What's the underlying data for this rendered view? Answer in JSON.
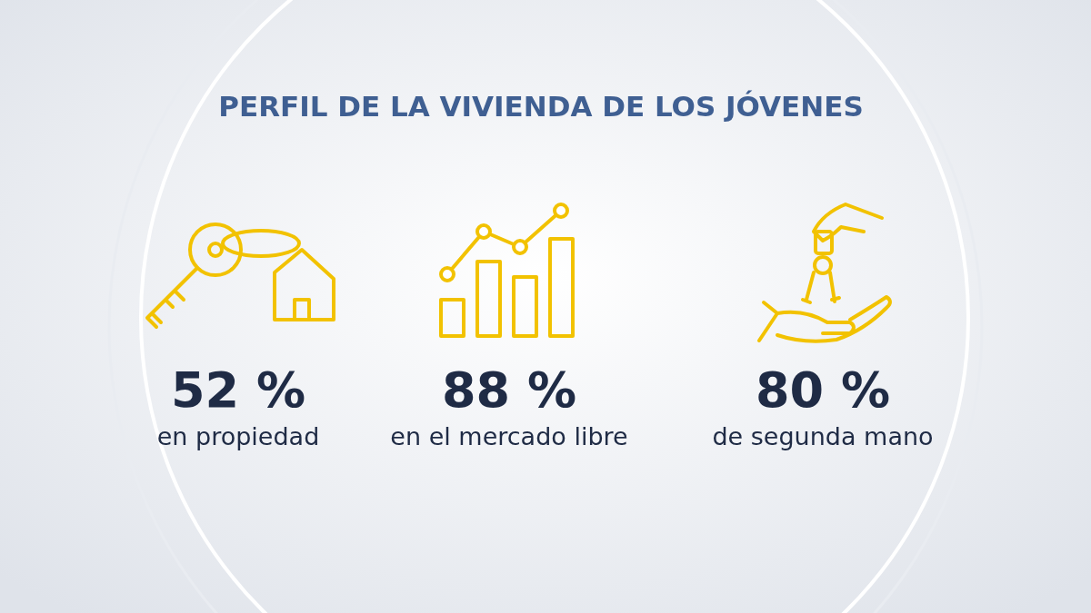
{
  "chart_data": {
    "type": "other",
    "title": "PERFIL DE LA VIVIENDA DE LOS JÓVENES",
    "categories": [
      "en propiedad",
      "en el mercado libre",
      "de segunda mano"
    ],
    "values": [
      52,
      88,
      80
    ],
    "value_labels": [
      "52 %",
      "88 %",
      "80 %"
    ]
  }
}
